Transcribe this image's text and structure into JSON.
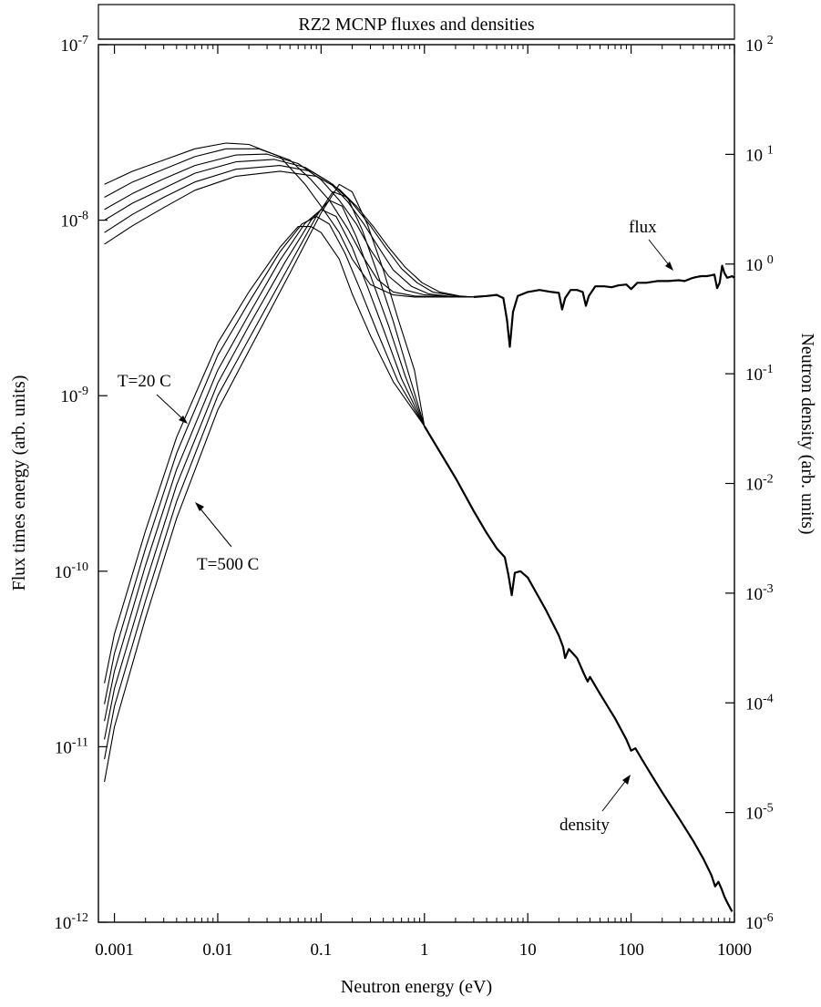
{
  "chart_data": {
    "type": "line",
    "title": "RZ2 MCNP fluxes and densities",
    "xlabel": "Neutron energy (eV)",
    "ylabel_left": "Flux times energy (arb. units)",
    "ylabel_right": "Neutron density (arb. units)",
    "x_scale": "log",
    "y_scale": "log",
    "xlim": [
      0.0007,
      1000
    ],
    "ylim_left": [
      1e-12,
      1e-07
    ],
    "ylim_right": [
      1e-06,
      100
    ],
    "grid": false,
    "x_ticks": [
      {
        "value": 0.001,
        "label": "0.001"
      },
      {
        "value": 0.01,
        "label": "0.01"
      },
      {
        "value": 0.1,
        "label": "0.1"
      },
      {
        "value": 1,
        "label": "1"
      },
      {
        "value": 10,
        "label": "10"
      },
      {
        "value": 100,
        "label": "100"
      },
      {
        "value": 1000,
        "label": "1000"
      }
    ],
    "y_left_ticks": [
      {
        "value": 1e-12,
        "base": "10",
        "exp": "-12"
      },
      {
        "value": 1e-11,
        "base": "10",
        "exp": "-11"
      },
      {
        "value": 1e-10,
        "base": "10",
        "exp": "-10"
      },
      {
        "value": 1e-09,
        "base": "10",
        "exp": "-9"
      },
      {
        "value": 1e-08,
        "base": "10",
        "exp": "-8"
      },
      {
        "value": 1e-07,
        "base": "10",
        "exp": "-7"
      }
    ],
    "y_right_ticks": [
      {
        "value": 1e-06,
        "base": "10",
        "exp": "-6"
      },
      {
        "value": 1e-05,
        "base": "10",
        "exp": "-5"
      },
      {
        "value": 0.0001,
        "base": "10",
        "exp": "-4"
      },
      {
        "value": 0.001,
        "base": "10",
        "exp": "-3"
      },
      {
        "value": 0.01,
        "base": "10",
        "exp": "-2"
      },
      {
        "value": 0.1,
        "base": "10",
        "exp": "-1"
      },
      {
        "value": 1,
        "base": "10 ",
        "exp": "0"
      },
      {
        "value": 10,
        "base": "10 ",
        "exp": "1"
      },
      {
        "value": 100,
        "base": "10 ",
        "exp": "2"
      }
    ],
    "annotations": {
      "t_low": "T=20 C",
      "t_high": "T=500 C",
      "flux": "flux",
      "density": "density"
    },
    "flux_series": [
      {
        "points": [
          [
            0.0008,
            1.6e-08
          ],
          [
            0.0015,
            1.9e-08
          ],
          [
            0.003,
            2.2e-08
          ],
          [
            0.006,
            2.55e-08
          ],
          [
            0.012,
            2.75e-08
          ],
          [
            0.02,
            2.7e-08
          ],
          [
            0.04,
            2.3e-08
          ],
          [
            0.07,
            1.6e-08
          ],
          [
            0.1,
            1.2e-08
          ],
          [
            0.15,
            8.5e-09
          ],
          [
            0.2,
            6e-09
          ],
          [
            0.3,
            4.3e-09
          ],
          [
            0.5,
            3.75e-09
          ],
          [
            0.8,
            3.65e-09
          ],
          [
            1.5,
            3.65e-09
          ],
          [
            3,
            3.65e-09
          ]
        ]
      },
      {
        "points": [
          [
            0.0008,
            1.35e-08
          ],
          [
            0.0015,
            1.65e-08
          ],
          [
            0.003,
            1.95e-08
          ],
          [
            0.006,
            2.3e-08
          ],
          [
            0.012,
            2.55e-08
          ],
          [
            0.025,
            2.55e-08
          ],
          [
            0.05,
            2.2e-08
          ],
          [
            0.08,
            1.7e-08
          ],
          [
            0.12,
            1.3e-08
          ],
          [
            0.18,
            9e-09
          ],
          [
            0.25,
            6.3e-09
          ],
          [
            0.35,
            4.6e-09
          ],
          [
            0.5,
            3.9e-09
          ],
          [
            0.8,
            3.7e-09
          ],
          [
            1.5,
            3.65e-09
          ],
          [
            3,
            3.65e-09
          ]
        ]
      },
      {
        "points": [
          [
            0.0008,
            1.15e-08
          ],
          [
            0.0015,
            1.42e-08
          ],
          [
            0.003,
            1.72e-08
          ],
          [
            0.006,
            2.05e-08
          ],
          [
            0.015,
            2.35e-08
          ],
          [
            0.03,
            2.38e-08
          ],
          [
            0.06,
            2.1e-08
          ],
          [
            0.1,
            1.7e-08
          ],
          [
            0.15,
            1.3e-08
          ],
          [
            0.22,
            9.5e-09
          ],
          [
            0.3,
            6.8e-09
          ],
          [
            0.45,
            4.8e-09
          ],
          [
            0.65,
            4e-09
          ],
          [
            1,
            3.75e-09
          ],
          [
            2,
            3.65e-09
          ],
          [
            3,
            3.65e-09
          ]
        ]
      },
      {
        "points": [
          [
            0.0008,
            1e-08
          ],
          [
            0.0015,
            1.25e-08
          ],
          [
            0.003,
            1.52e-08
          ],
          [
            0.006,
            1.85e-08
          ],
          [
            0.015,
            2.15e-08
          ],
          [
            0.035,
            2.22e-08
          ],
          [
            0.07,
            2e-08
          ],
          [
            0.12,
            1.65e-08
          ],
          [
            0.18,
            1.28e-08
          ],
          [
            0.26,
            9.5e-09
          ],
          [
            0.36,
            7e-09
          ],
          [
            0.5,
            5.2e-09
          ],
          [
            0.75,
            4.2e-09
          ],
          [
            1.1,
            3.8e-09
          ],
          [
            2,
            3.65e-09
          ],
          [
            3,
            3.65e-09
          ]
        ]
      },
      {
        "points": [
          [
            0.0008,
            8.5e-09
          ],
          [
            0.0015,
            1.08e-08
          ],
          [
            0.003,
            1.35e-08
          ],
          [
            0.006,
            1.65e-08
          ],
          [
            0.015,
            1.95e-08
          ],
          [
            0.04,
            2.05e-08
          ],
          [
            0.08,
            1.9e-08
          ],
          [
            0.13,
            1.6e-08
          ],
          [
            0.2,
            1.25e-08
          ],
          [
            0.3,
            9.3e-09
          ],
          [
            0.42,
            7e-09
          ],
          [
            0.6,
            5.3e-09
          ],
          [
            0.85,
            4.4e-09
          ],
          [
            1.2,
            3.9e-09
          ],
          [
            2,
            3.7e-09
          ],
          [
            3,
            3.65e-09
          ]
        ]
      },
      {
        "points": [
          [
            0.0008,
            7.3e-09
          ],
          [
            0.0015,
            9.3e-09
          ],
          [
            0.003,
            1.18e-08
          ],
          [
            0.006,
            1.48e-08
          ],
          [
            0.015,
            1.78e-08
          ],
          [
            0.04,
            1.9e-08
          ],
          [
            0.09,
            1.78e-08
          ],
          [
            0.15,
            1.5e-08
          ],
          [
            0.22,
            1.2e-08
          ],
          [
            0.32,
            9.2e-09
          ],
          [
            0.45,
            7e-09
          ],
          [
            0.65,
            5.4e-09
          ],
          [
            0.95,
            4.4e-09
          ],
          [
            1.4,
            3.9e-09
          ],
          [
            2.2,
            3.7e-09
          ],
          [
            3,
            3.65e-09
          ]
        ]
      }
    ],
    "flux_common": [
      [
        3,
        3.65e-09
      ],
      [
        4,
        3.7e-09
      ],
      [
        5,
        3.75e-09
      ],
      [
        5.8,
        3.6e-09
      ],
      [
        6.3,
        2.7e-09
      ],
      [
        6.7,
        1.9e-09
      ],
      [
        7.2,
        3e-09
      ],
      [
        8,
        3.7e-09
      ],
      [
        10,
        3.9e-09
      ],
      [
        13,
        4e-09
      ],
      [
        17,
        3.9e-09
      ],
      [
        20,
        3.85e-09
      ],
      [
        21.5,
        3.1e-09
      ],
      [
        23,
        3.6e-09
      ],
      [
        26,
        4e-09
      ],
      [
        30,
        4e-09
      ],
      [
        34,
        3.9e-09
      ],
      [
        36.5,
        3.25e-09
      ],
      [
        39,
        3.7e-09
      ],
      [
        45,
        4.2e-09
      ],
      [
        55,
        4.2e-09
      ],
      [
        65,
        4.15e-09
      ],
      [
        75,
        4.25e-09
      ],
      [
        90,
        4.3e-09
      ],
      [
        100,
        4.05e-09
      ],
      [
        115,
        4.4e-09
      ],
      [
        140,
        4.4e-09
      ],
      [
        180,
        4.5e-09
      ],
      [
        230,
        4.5e-09
      ],
      [
        290,
        4.55e-09
      ],
      [
        330,
        4.5e-09
      ],
      [
        380,
        4.65e-09
      ],
      [
        430,
        4.75e-09
      ],
      [
        480,
        4.8e-09
      ],
      [
        540,
        4.8e-09
      ],
      [
        600,
        4.85e-09
      ],
      [
        640,
        4.9e-09
      ],
      [
        680,
        4.1e-09
      ],
      [
        720,
        4.4e-09
      ],
      [
        760,
        5.5e-09
      ],
      [
        800,
        5e-09
      ],
      [
        850,
        4.7e-09
      ],
      [
        900,
        4.75e-09
      ],
      [
        950,
        4.8e-09
      ],
      [
        990,
        4.7e-09
      ]
    ],
    "density_series": [
      {
        "points": [
          [
            0.0008,
            2.3e-11
          ],
          [
            0.001,
            4.4e-11
          ],
          [
            0.002,
            1.7e-10
          ],
          [
            0.004,
            5.8e-10
          ],
          [
            0.01,
            2e-09
          ],
          [
            0.02,
            3.9e-09
          ],
          [
            0.04,
            7e-09
          ],
          [
            0.06,
            9.2e-09
          ],
          [
            0.08,
            9.2e-09
          ],
          [
            0.1,
            8.5e-09
          ],
          [
            0.15,
            6e-09
          ],
          [
            0.2,
            3.8e-09
          ],
          [
            0.3,
            2.2e-09
          ],
          [
            0.5,
            1.2e-09
          ],
          [
            1,
            6.7e-10
          ]
        ]
      },
      {
        "points": [
          [
            0.0008,
            1.75e-11
          ],
          [
            0.001,
            3.4e-11
          ],
          [
            0.002,
            1.35e-10
          ],
          [
            0.004,
            4.7e-10
          ],
          [
            0.01,
            1.7e-09
          ],
          [
            0.02,
            3.4e-09
          ],
          [
            0.04,
            6.6e-09
          ],
          [
            0.065,
            9.5e-09
          ],
          [
            0.09,
            1.05e-08
          ],
          [
            0.12,
            9.5e-09
          ],
          [
            0.17,
            6.5e-09
          ],
          [
            0.24,
            4e-09
          ],
          [
            0.35,
            2.3e-09
          ],
          [
            0.55,
            1.22e-09
          ],
          [
            1,
            6.7e-10
          ]
        ]
      },
      {
        "points": [
          [
            0.0008,
            1.4e-11
          ],
          [
            0.001,
            2.7e-11
          ],
          [
            0.002,
            1.08e-10
          ],
          [
            0.004,
            3.8e-10
          ],
          [
            0.01,
            1.4e-09
          ],
          [
            0.02,
            2.9e-09
          ],
          [
            0.04,
            5.9e-09
          ],
          [
            0.07,
            9.6e-09
          ],
          [
            0.1,
            1.15e-08
          ],
          [
            0.14,
            1.05e-08
          ],
          [
            0.2,
            7e-09
          ],
          [
            0.28,
            4.2e-09
          ],
          [
            0.4,
            2.4e-09
          ],
          [
            0.6,
            1.25e-09
          ],
          [
            1,
            6.7e-10
          ]
        ]
      },
      {
        "points": [
          [
            0.0008,
            1.1e-11
          ],
          [
            0.001,
            2.15e-11
          ],
          [
            0.002,
            8.5e-11
          ],
          [
            0.004,
            3.1e-10
          ],
          [
            0.01,
            1.18e-09
          ],
          [
            0.02,
            2.5e-09
          ],
          [
            0.045,
            5.8e-09
          ],
          [
            0.08,
            1e-08
          ],
          [
            0.12,
            1.3e-08
          ],
          [
            0.16,
            1.2e-08
          ],
          [
            0.22,
            8e-09
          ],
          [
            0.31,
            4.6e-09
          ],
          [
            0.45,
            2.5e-09
          ],
          [
            0.65,
            1.3e-09
          ],
          [
            1,
            6.7e-10
          ]
        ]
      },
      {
        "points": [
          [
            0.0008,
            8.5e-12
          ],
          [
            0.001,
            1.7e-11
          ],
          [
            0.002,
            6.8e-11
          ],
          [
            0.004,
            2.5e-10
          ],
          [
            0.01,
            1e-09
          ],
          [
            0.02,
            2.1e-09
          ],
          [
            0.05,
            5.6e-09
          ],
          [
            0.09,
            1.05e-08
          ],
          [
            0.13,
            1.45e-08
          ],
          [
            0.18,
            1.35e-08
          ],
          [
            0.25,
            8.8e-09
          ],
          [
            0.35,
            5e-09
          ],
          [
            0.5,
            2.65e-09
          ],
          [
            0.7,
            1.35e-09
          ],
          [
            1,
            6.7e-10
          ]
        ]
      },
      {
        "points": [
          [
            0.0008,
            6.3e-12
          ],
          [
            0.001,
            1.3e-11
          ],
          [
            0.002,
            5.4e-11
          ],
          [
            0.004,
            2e-10
          ],
          [
            0.01,
            8.3e-10
          ],
          [
            0.02,
            1.8e-09
          ],
          [
            0.05,
            5e-09
          ],
          [
            0.1,
            1.1e-08
          ],
          [
            0.15,
            1.6e-08
          ],
          [
            0.2,
            1.45e-08
          ],
          [
            0.28,
            9.5e-09
          ],
          [
            0.4,
            5.2e-09
          ],
          [
            0.55,
            2.8e-09
          ],
          [
            0.8,
            1.4e-09
          ],
          [
            1,
            6.7e-10
          ]
        ]
      }
    ],
    "density_common": [
      [
        1,
        6.7e-10
      ],
      [
        2,
        3.4e-10
      ],
      [
        3,
        2.2e-10
      ],
      [
        4,
        1.65e-10
      ],
      [
        5,
        1.35e-10
      ],
      [
        6,
        1.2e-10
      ],
      [
        6.5,
        9.5e-11
      ],
      [
        7,
        7.3e-11
      ],
      [
        7.5,
        9.8e-11
      ],
      [
        8.5,
        1e-10
      ],
      [
        10,
        9.2e-11
      ],
      [
        15,
        6e-11
      ],
      [
        20,
        4.3e-11
      ],
      [
        22,
        3.7e-11
      ],
      [
        23,
        3.2e-11
      ],
      [
        25,
        3.6e-11
      ],
      [
        30,
        3.2e-11
      ],
      [
        35,
        2.6e-11
      ],
      [
        38,
        2.35e-11
      ],
      [
        40,
        2.5e-11
      ],
      [
        50,
        2e-11
      ],
      [
        70,
        1.45e-11
      ],
      [
        90,
        1.1e-11
      ],
      [
        100,
        9.5e-12
      ],
      [
        110,
        9.8e-12
      ],
      [
        130,
        8.3e-12
      ],
      [
        160,
        6.8e-12
      ],
      [
        200,
        5.5e-12
      ],
      [
        300,
        3.8e-12
      ],
      [
        400,
        2.9e-12
      ],
      [
        500,
        2.3e-12
      ],
      [
        600,
        1.85e-12
      ],
      [
        650,
        1.6e-12
      ],
      [
        700,
        1.7e-12
      ],
      [
        750,
        1.55e-12
      ],
      [
        800,
        1.4e-12
      ],
      [
        850,
        1.3e-12
      ],
      [
        900,
        1.22e-12
      ],
      [
        950,
        1.15e-12
      ]
    ]
  }
}
